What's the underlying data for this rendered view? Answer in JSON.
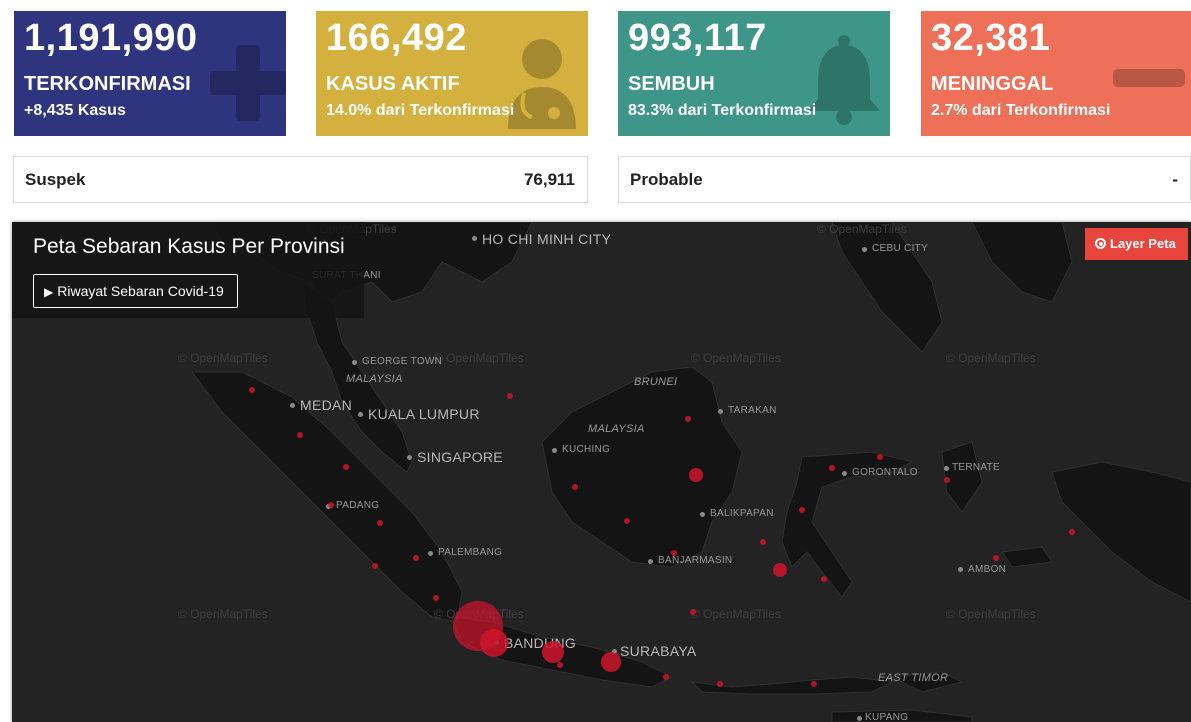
{
  "stats": {
    "confirmed": {
      "value": "1,191,990",
      "label": "TERKONFIRMASI",
      "sub": "+8,435 Kasus",
      "color": "#2e347e",
      "icon": "plus-icon"
    },
    "active": {
      "value": "166,492",
      "label": "KASUS AKTIF",
      "sub": "14.0% dari Terkonfirmasi",
      "color": "#d4b13f",
      "icon": "doctor-icon"
    },
    "recovered": {
      "value": "993,117",
      "label": "SEMBUH",
      "sub": "83.3% dari Terkonfirmasi",
      "color": "#3d9688",
      "icon": "bell-icon"
    },
    "deaths": {
      "value": "32,381",
      "label": "MENINGGAL",
      "sub": "2.7% dari Terkonfirmasi",
      "color": "#ee7058",
      "icon": "minus-icon"
    }
  },
  "suspect": {
    "label": "Suspek",
    "value": "76,911"
  },
  "probable": {
    "label": "Probable",
    "value": "-"
  },
  "map": {
    "title": "Peta Sebaran Kasus Per Provinsi",
    "history_button": "Riwayat Sebaran Covid-19",
    "layer_button": "Layer Peta",
    "attribution": "© OpenMapTiles",
    "labels": {
      "ho_chi_minh": "HO CHI MINH CITY",
      "cebu": "CEBU CITY",
      "surat_thani": "SURAT THANI",
      "george_town": "GEORGE TOWN",
      "malaysia_w": "MALAYSIA",
      "brunei": "BRUNEI",
      "medan": "MEDAN",
      "kuala_lumpur": "KUALA LUMPUR",
      "tarakan": "TARAKAN",
      "malaysia_e": "MALAYSIA",
      "kuching": "KUCHING",
      "singapore": "SINGAPORE",
      "ternate": "TERNATE",
      "gorontalo": "GORONTALO",
      "padang": "PADANG",
      "balikpapan": "BALIKPAPAN",
      "palembang": "PALEMBANG",
      "banjarmasin": "BANJARMASIN",
      "ambon": "AMBON",
      "bandung": "BANDUNG",
      "surabaya": "SURABAYA",
      "east_timor": "EAST TIMOR",
      "kupang": "KUPANG"
    },
    "case_color": "#d0142c"
  }
}
